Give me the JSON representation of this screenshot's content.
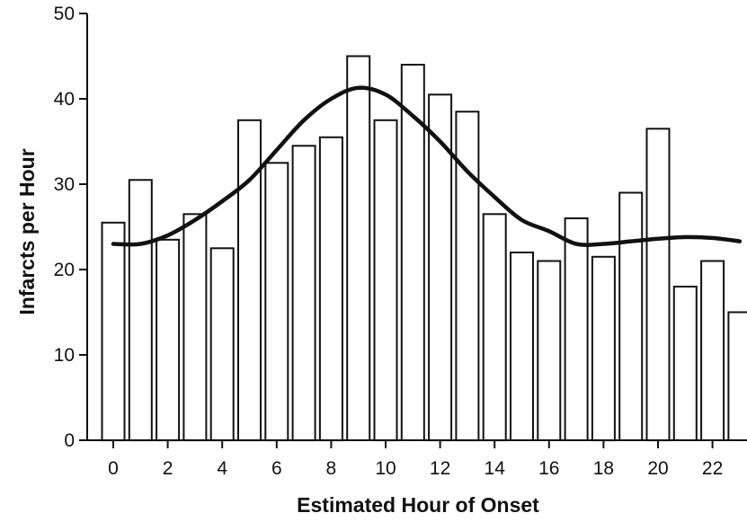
{
  "chart_data": {
    "type": "bar",
    "xlabel": "Estimated Hour of Onset",
    "ylabel": "Infarcts per Hour",
    "ylim": [
      0,
      50
    ],
    "yticks": [
      0,
      10,
      20,
      30,
      40,
      50
    ],
    "xticks": [
      0,
      2,
      4,
      6,
      8,
      10,
      12,
      14,
      16,
      18,
      20,
      22
    ],
    "grid": false,
    "legend": "none",
    "categories": [
      0,
      1,
      2,
      3,
      4,
      5,
      6,
      7,
      8,
      9,
      10,
      11,
      12,
      13,
      14,
      15,
      16,
      17,
      18,
      19,
      20,
      21,
      22,
      23
    ],
    "values": [
      25.5,
      30.5,
      23.5,
      26.5,
      22.5,
      37.5,
      32.5,
      34.5,
      35.5,
      45,
      37.5,
      44,
      40.5,
      38.5,
      26.5,
      22,
      21,
      26,
      21.5,
      29,
      36.5,
      18,
      21,
      15
    ],
    "trend_line": {
      "x": [
        0,
        1,
        2,
        3,
        4,
        5,
        6,
        7,
        8,
        9,
        10,
        11,
        12,
        13,
        14,
        15,
        16,
        17,
        18,
        19,
        20,
        21,
        22,
        23
      ],
      "y": [
        23,
        23,
        24,
        25.8,
        28,
        30.5,
        34,
        37.5,
        40,
        41.3,
        40.5,
        38,
        35,
        31.5,
        28.5,
        25.8,
        24.5,
        23,
        23,
        23.3,
        23.6,
        23.8,
        23.7,
        23.3
      ]
    },
    "colors": {
      "bar_fill": "#ffffff",
      "bar_stroke": "#111111",
      "line": "#111111"
    }
  }
}
